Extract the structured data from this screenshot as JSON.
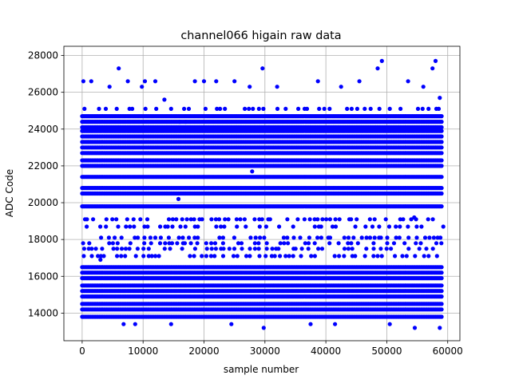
{
  "chart_data": {
    "type": "scatter",
    "title": "channel066 higain raw data",
    "xlabel": "sample number",
    "ylabel": "ADC Code",
    "xlim": [
      -3000,
      62000
    ],
    "ylim": [
      12500,
      28500
    ],
    "xticks": [
      0,
      10000,
      20000,
      30000,
      40000,
      50000,
      60000
    ],
    "xtick_labels": [
      "0",
      "10000",
      "20000",
      "30000",
      "40000",
      "50000",
      "60000"
    ],
    "yticks": [
      14000,
      16000,
      18000,
      20000,
      22000,
      24000,
      26000,
      28000
    ],
    "ytick_labels": [
      "14000",
      "16000",
      "18000",
      "20000",
      "22000",
      "24000",
      "26000",
      "28000"
    ],
    "grid": true,
    "marker_color": "#0000ff",
    "x_range": [
      0,
      59000
    ],
    "dense_levels": [
      13800,
      14200,
      14500,
      14900,
      15200,
      15500,
      15900,
      16200,
      16500,
      19800,
      20500,
      20800,
      21400,
      22000,
      22300,
      22700,
      23000,
      23300,
      23600,
      23900,
      24100,
      24400,
      24700
    ],
    "sparse_levels": [
      17100,
      17500,
      17800,
      18100,
      18700,
      19100
    ],
    "outliers": [
      {
        "x": 200,
        "y": 26600
      },
      {
        "x": 1500,
        "y": 26600
      },
      {
        "x": 4500,
        "y": 26300
      },
      {
        "x": 6000,
        "y": 27300
      },
      {
        "x": 7500,
        "y": 26600
      },
      {
        "x": 9800,
        "y": 26300
      },
      {
        "x": 10300,
        "y": 26600
      },
      {
        "x": 12000,
        "y": 26600
      },
      {
        "x": 13500,
        "y": 25600
      },
      {
        "x": 18500,
        "y": 26600
      },
      {
        "x": 20000,
        "y": 26600
      },
      {
        "x": 22000,
        "y": 26600
      },
      {
        "x": 25000,
        "y": 26600
      },
      {
        "x": 27500,
        "y": 26300
      },
      {
        "x": 29600,
        "y": 27300
      },
      {
        "x": 32000,
        "y": 26300
      },
      {
        "x": 38700,
        "y": 26600
      },
      {
        "x": 42500,
        "y": 26300
      },
      {
        "x": 45500,
        "y": 26600
      },
      {
        "x": 48500,
        "y": 27300
      },
      {
        "x": 49200,
        "y": 27700
      },
      {
        "x": 53500,
        "y": 26600
      },
      {
        "x": 56000,
        "y": 26300
      },
      {
        "x": 58000,
        "y": 27700
      },
      {
        "x": 57500,
        "y": 27300
      },
      {
        "x": 58700,
        "y": 25700
      },
      {
        "x": 16000,
        "y": 24400
      },
      {
        "x": 17000,
        "y": 24400
      },
      {
        "x": 15800,
        "y": 20200
      },
      {
        "x": 27900,
        "y": 21700
      },
      {
        "x": 29800,
        "y": 13200
      },
      {
        "x": 54600,
        "y": 13200
      },
      {
        "x": 58700,
        "y": 13200
      },
      {
        "x": 3000,
        "y": 16900
      },
      {
        "x": 6800,
        "y": 13400
      },
      {
        "x": 8700,
        "y": 13400
      },
      {
        "x": 14600,
        "y": 13400
      },
      {
        "x": 24500,
        "y": 13400
      },
      {
        "x": 37500,
        "y": 13400
      },
      {
        "x": 41500,
        "y": 13400
      },
      {
        "x": 50500,
        "y": 13400
      },
      {
        "x": 56300,
        "y": 18100
      },
      {
        "x": 58800,
        "y": 18100
      },
      {
        "x": 54500,
        "y": 19200
      },
      {
        "x": 54800,
        "y": 19100
      }
    ]
  }
}
